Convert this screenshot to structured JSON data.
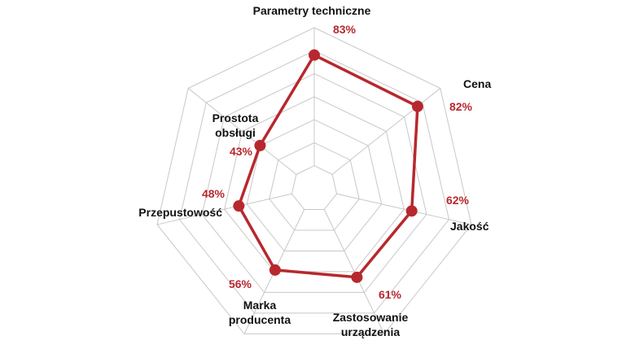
{
  "chart_data": {
    "type": "radar",
    "title": "",
    "categories": [
      "Parametry techniczne",
      "Cena",
      "Jakość",
      "Zastosowanie urządzenia",
      "Marka producenta",
      "Przepustowość",
      "Prostota obsługi"
    ],
    "axis_label_lines": [
      [
        "Parametry techniczne"
      ],
      [
        "Cena"
      ],
      [
        "Jakość"
      ],
      [
        "Zastosowanie",
        "urządzenia"
      ],
      [
        "Marka",
        "producenta"
      ],
      [
        "Przepustowość"
      ],
      [
        "Prostota",
        "obsługi"
      ]
    ],
    "values": [
      83,
      82,
      62,
      61,
      56,
      48,
      43
    ],
    "value_labels": [
      "83%",
      "82%",
      "62%",
      "61%",
      "56%",
      "48%",
      "43%"
    ],
    "range": [
      0,
      100
    ],
    "grid_levels": 7,
    "grid": true,
    "legend": "none",
    "colors": {
      "series": "#b7282e",
      "grid": "#c8c8c8",
      "text": "#111111"
    }
  }
}
